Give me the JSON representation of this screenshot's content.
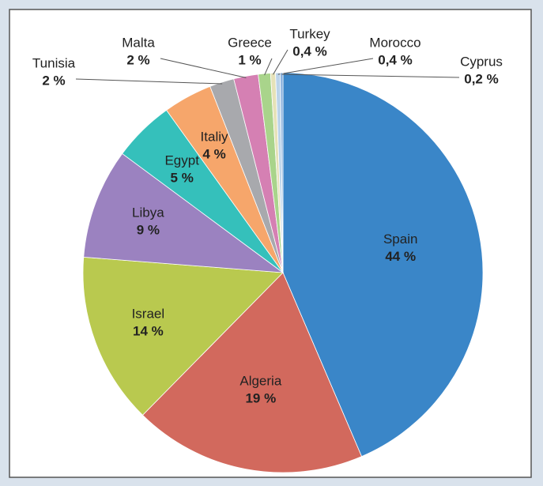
{
  "chart_data": {
    "type": "pie",
    "categories": [
      "Spain",
      "Algeria",
      "Israel",
      "Libya",
      "Egypt",
      "Italiy",
      "Tunisia",
      "Malta",
      "Greece",
      "Turkey",
      "Morocco",
      "Cyprus"
    ],
    "values": [
      44,
      19,
      14,
      9,
      5,
      4,
      2,
      2,
      1,
      0.4,
      0.4,
      0.2
    ],
    "value_labels": [
      "44 %",
      "19 %",
      "14 %",
      "9 %",
      "5 %",
      "4 %",
      "2 %",
      "2 %",
      "1 %",
      "0,4 %",
      "0,4 %",
      "0,2 %"
    ],
    "colors": [
      "#3a86c8",
      "#d2695d",
      "#b9c94f",
      "#9b82c0",
      "#35c0bb",
      "#f6a66b",
      "#a8a9ad",
      "#d580b3",
      "#a9d48b",
      "#e6e2b8",
      "#bcd4ea",
      "#7ba7d9"
    ]
  }
}
